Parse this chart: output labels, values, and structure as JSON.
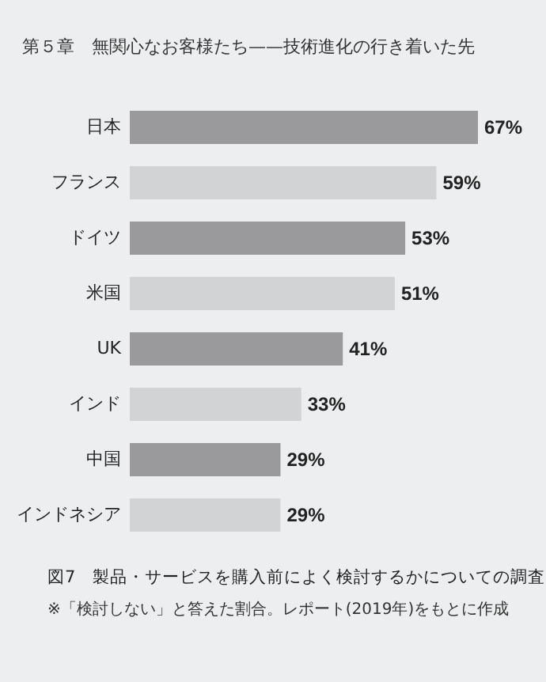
{
  "chart_data": {
    "type": "bar",
    "orientation": "horizontal",
    "title": "図7　製品・サービスを購入前によく検討するかについての調査",
    "subtitle": "第５章　無関心なお客様たち——技術進化の行き着いた先",
    "annotations": [
      "※「検討しない」と答えた割合。レポート(2019年)をもとに作成"
    ],
    "categories": [
      "日本",
      "フランス",
      "ドイツ",
      "米国",
      "UK",
      "インド",
      "中国",
      "インドネシア"
    ],
    "values": [
      67,
      59,
      53,
      51,
      41,
      33,
      29,
      29
    ],
    "value_labels": [
      "67%",
      "59%",
      "53%",
      "51%",
      "41%",
      "33%",
      "29%",
      "29%"
    ],
    "colors": [
      "#9a9a9c",
      "#d2d3d5",
      "#9a9a9c",
      "#d2d3d5",
      "#9a9a9c",
      "#d2d3d5",
      "#9a9a9c",
      "#d2d3d5"
    ],
    "tick_labels": "y"
  }
}
